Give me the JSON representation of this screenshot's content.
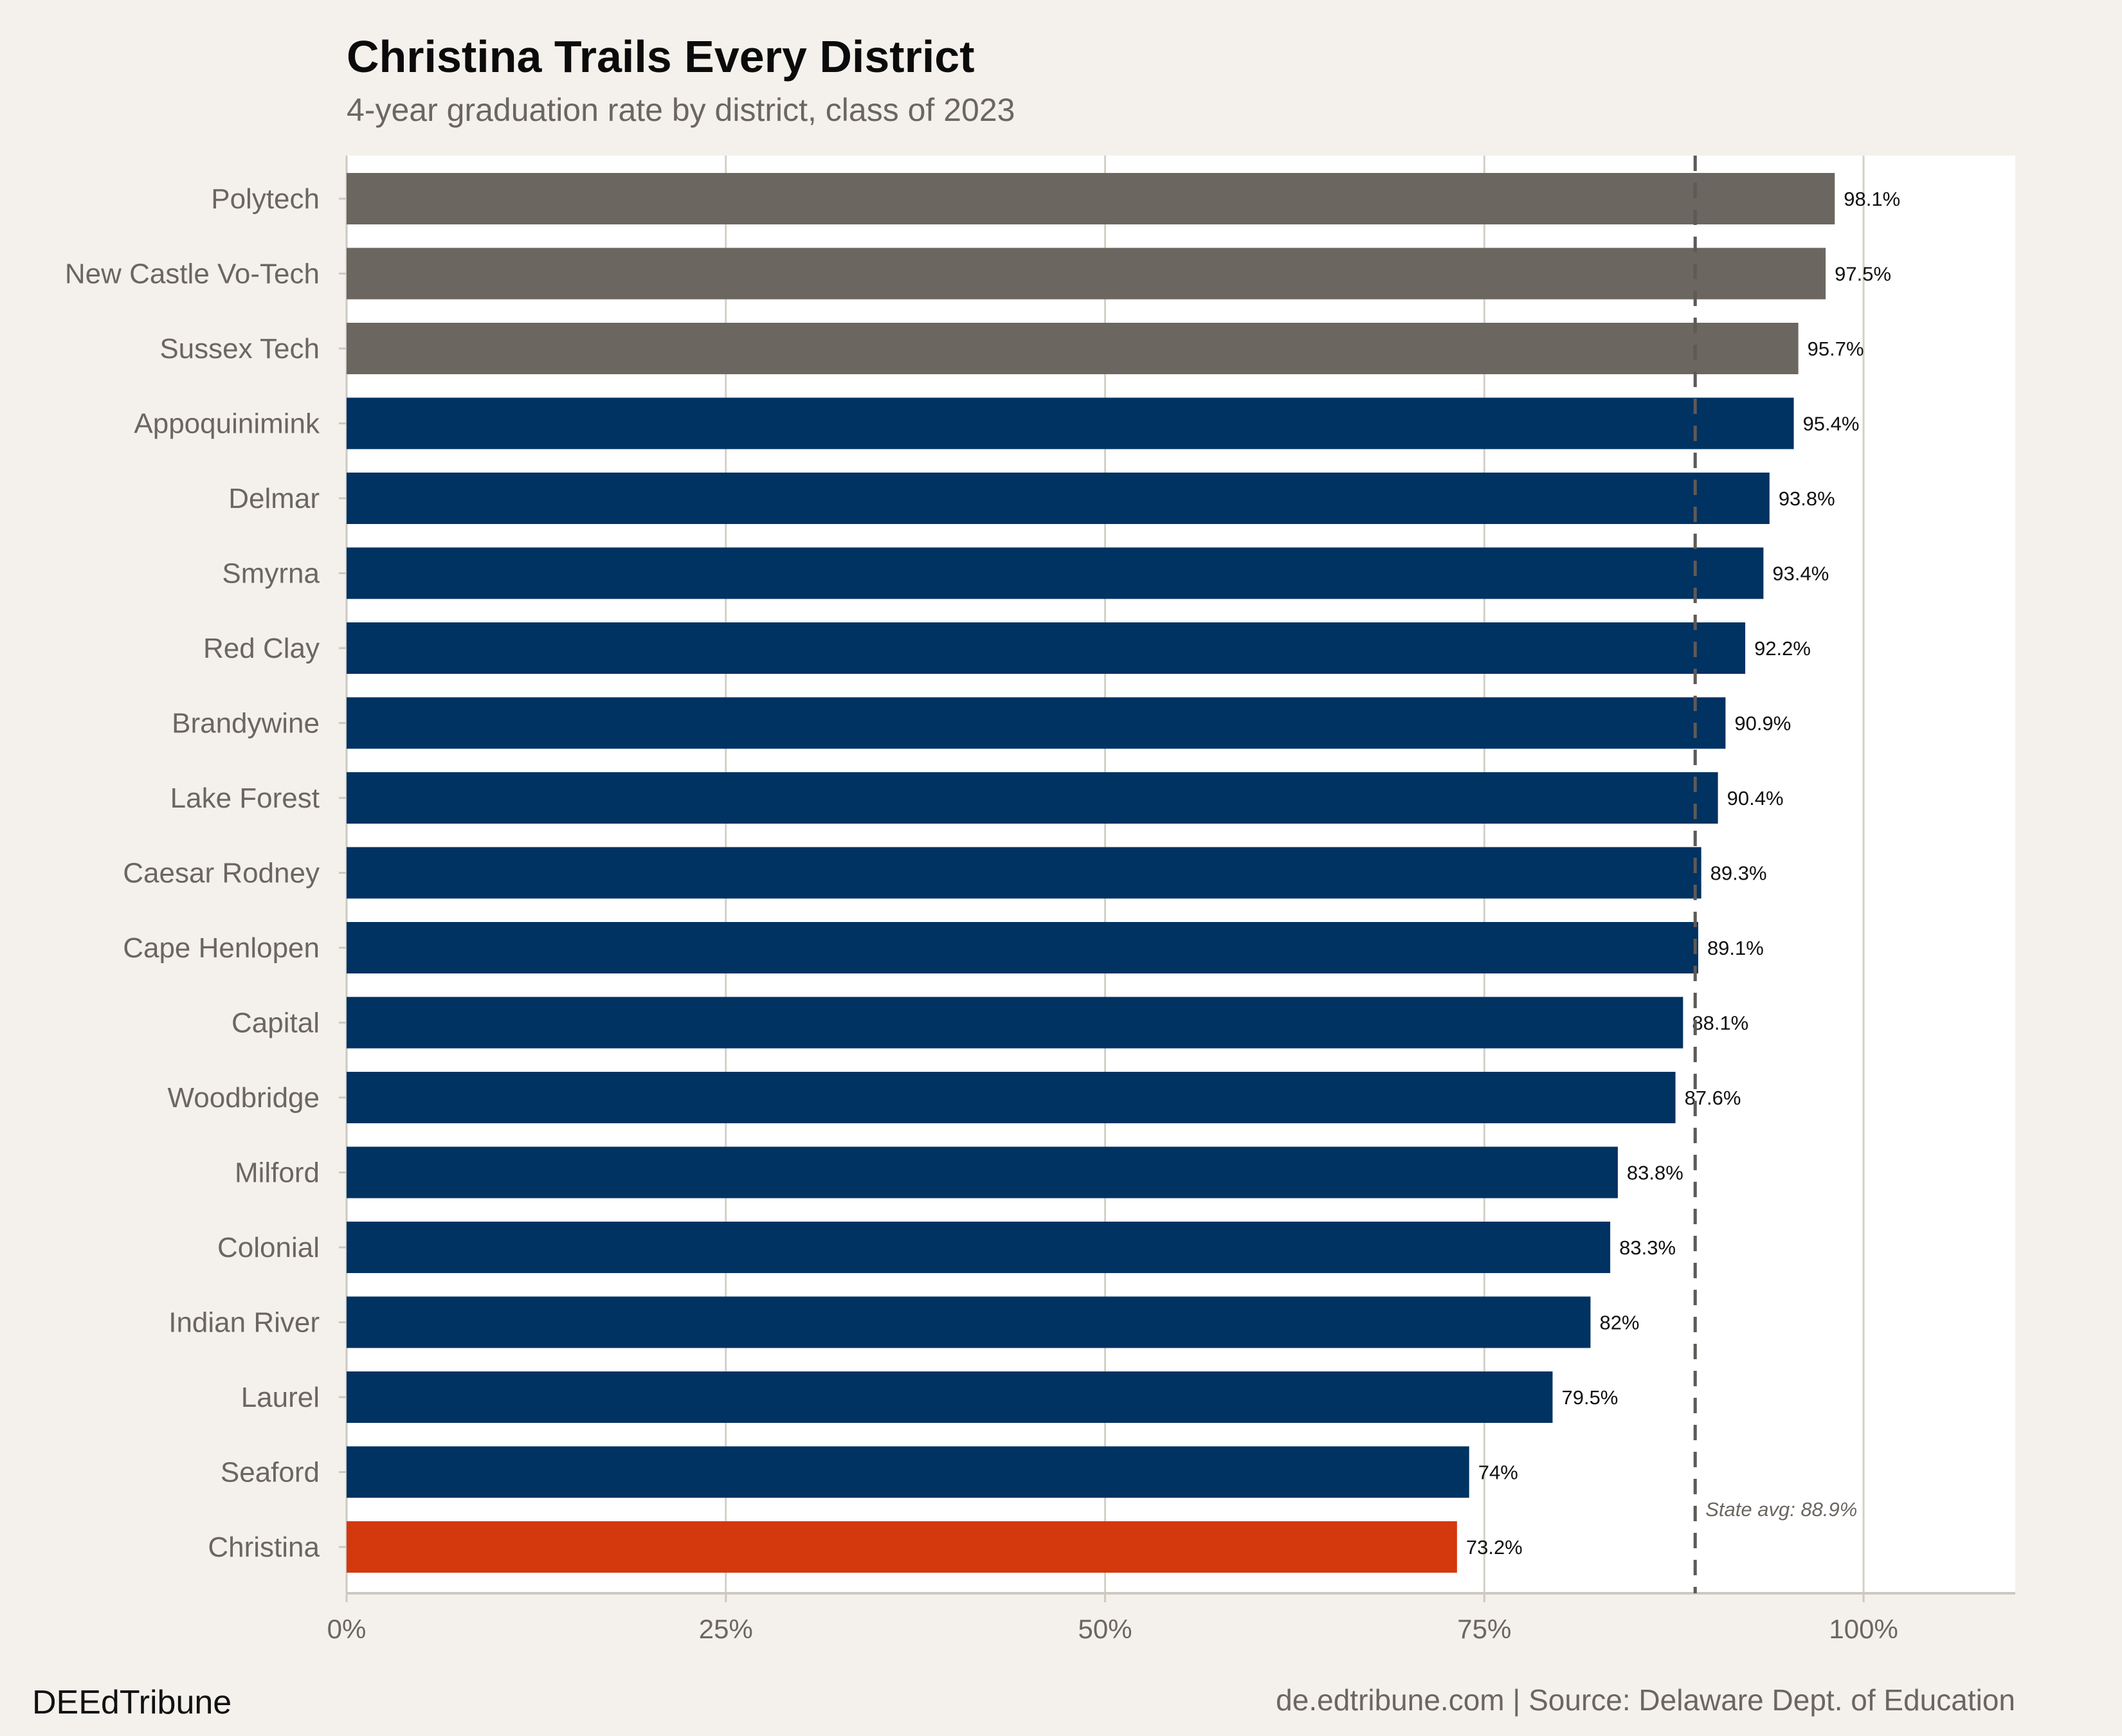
{
  "chart_data": {
    "type": "bar",
    "orientation": "horizontal",
    "title": "Christina Trails Every District",
    "subtitle": "4-year graduation rate by district, class of 2023",
    "categories": [
      "Polytech",
      "New Castle Vo-Tech",
      "Sussex Tech",
      "Appoquinimink",
      "Delmar",
      "Smyrna",
      "Red Clay",
      "Brandywine",
      "Lake Forest",
      "Caesar Rodney",
      "Cape Henlopen",
      "Capital",
      "Woodbridge",
      "Milford",
      "Colonial",
      "Indian River",
      "Laurel",
      "Seaford",
      "Christina"
    ],
    "values": [
      98.1,
      97.5,
      95.7,
      95.4,
      93.8,
      93.4,
      92.2,
      90.9,
      90.4,
      89.3,
      89.1,
      88.1,
      87.6,
      83.8,
      83.3,
      82,
      79.5,
      74,
      73.2
    ],
    "value_labels": [
      "98.1%",
      "97.5%",
      "95.7%",
      "95.4%",
      "93.8%",
      "93.4%",
      "92.2%",
      "90.9%",
      "90.4%",
      "89.3%",
      "89.1%",
      "88.1%",
      "87.6%",
      "83.8%",
      "83.3%",
      "82%",
      "79.5%",
      "74%",
      "73.2%"
    ],
    "groups": [
      "vo-tech",
      "vo-tech",
      "vo-tech",
      "district",
      "district",
      "district",
      "district",
      "district",
      "district",
      "district",
      "district",
      "district",
      "district",
      "district",
      "district",
      "district",
      "district",
      "district",
      "highlight"
    ],
    "colors": {
      "vo-tech": "#6b6660",
      "district": "#003262",
      "highlight": "#d4380d"
    },
    "xlim": [
      0,
      110
    ],
    "xticks": [
      0,
      25,
      50,
      75,
      100
    ],
    "xtick_labels": [
      "0%",
      "25%",
      "50%",
      "75%",
      "100%"
    ],
    "xlabel": "",
    "ylabel": "",
    "grid": true,
    "reference_line": {
      "value": 88.9,
      "label": "State avg: 88.9%",
      "style": "dashed"
    }
  },
  "footer": {
    "brand": "DEEdTribune",
    "source": "de.edtribune.com | Source: Delaware Dept. of Education"
  }
}
